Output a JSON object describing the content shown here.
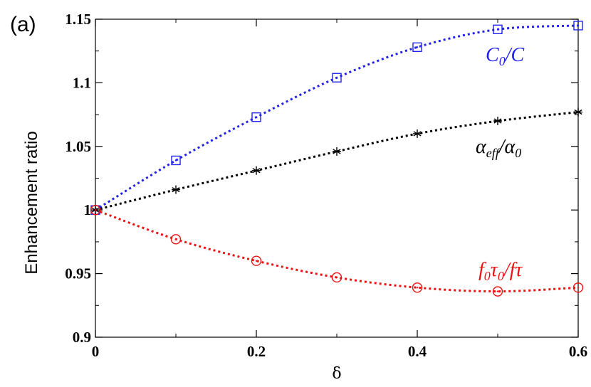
{
  "panel_label": "(a)",
  "chart_data": {
    "type": "line",
    "xlabel": "δ",
    "ylabel": "Enhancement ratio",
    "xlim": [
      0,
      0.6
    ],
    "ylim": [
      0.9,
      1.15
    ],
    "xticks": [
      "0",
      "0.2",
      "0.4",
      "0.6"
    ],
    "yticks": [
      "0.9",
      "0.95",
      "1",
      "1.05",
      "1.1",
      "1.15"
    ],
    "grid": false,
    "x": [
      0,
      0.1,
      0.2,
      0.3,
      0.4,
      0.5,
      0.6
    ],
    "series": [
      {
        "name": "C0/C",
        "label_parts": [
          {
            "text": "C",
            "sub": false
          },
          {
            "text": "0",
            "sub": true
          },
          {
            "text": "/C",
            "sub": false
          }
        ],
        "color": "#2222ee",
        "marker": "square",
        "values": [
          1.0,
          1.039,
          1.073,
          1.104,
          1.128,
          1.142,
          1.145
        ]
      },
      {
        "name": "αeff/α0",
        "label_parts": [
          {
            "text": "α",
            "sub": false
          },
          {
            "text": "eff",
            "sub": true
          },
          {
            "text": "/α",
            "sub": false
          },
          {
            "text": "0",
            "sub": true
          }
        ],
        "color": "#000000",
        "marker": "asterisk",
        "values": [
          1.0,
          1.016,
          1.031,
          1.046,
          1.06,
          1.07,
          1.077
        ]
      },
      {
        "name": "f0τ0/fτ",
        "label_parts": [
          {
            "text": "f",
            "sub": false
          },
          {
            "text": "0",
            "sub": true
          },
          {
            "text": "τ",
            "sub": false
          },
          {
            "text": "0",
            "sub": true
          },
          {
            "text": "/fτ",
            "sub": false
          }
        ],
        "color": "#ee1111",
        "marker": "circle",
        "values": [
          1.0,
          0.977,
          0.96,
          0.947,
          0.939,
          0.936,
          0.939
        ]
      }
    ]
  }
}
